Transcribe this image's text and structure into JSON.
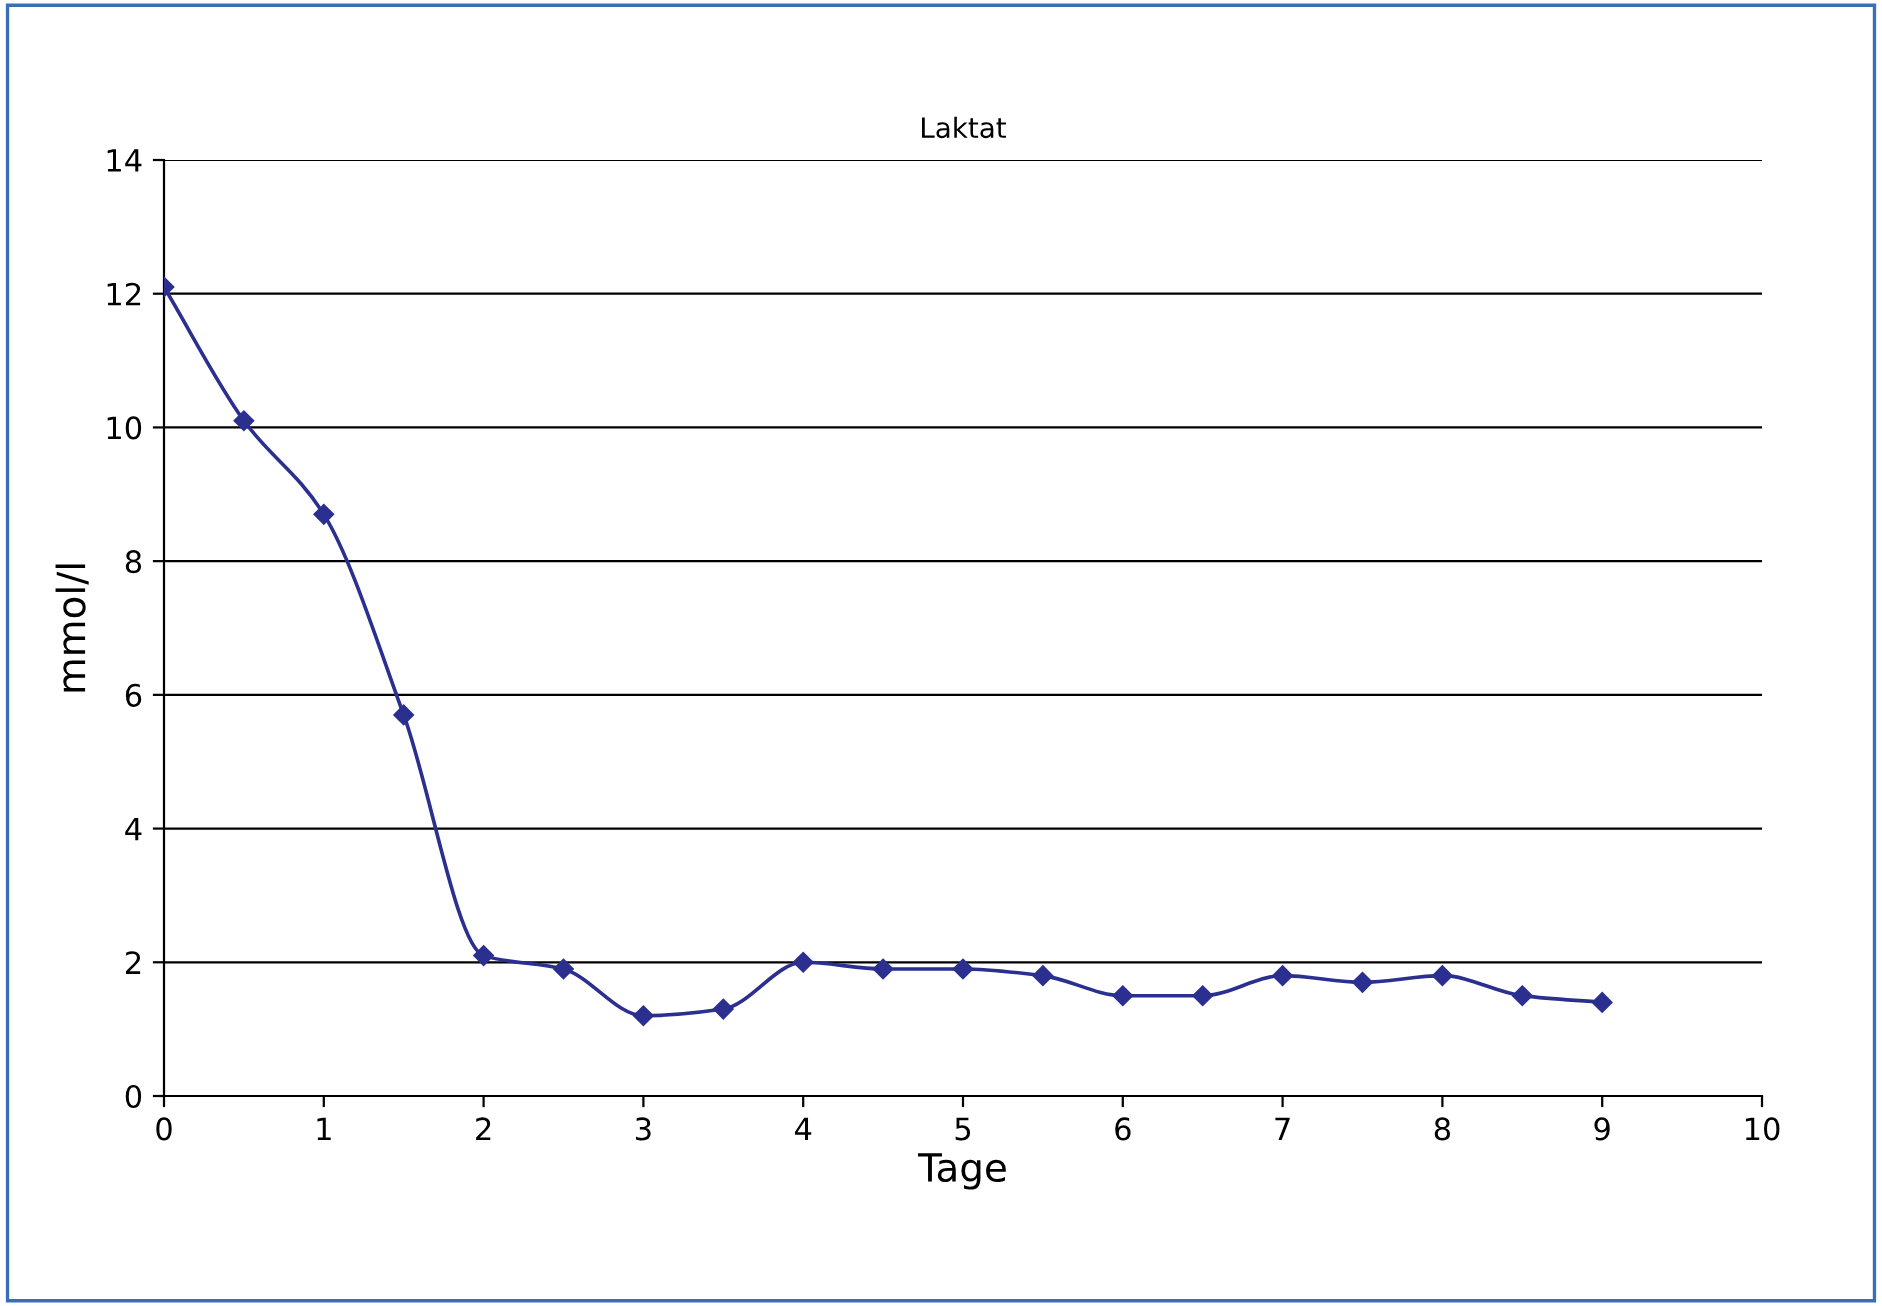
{
  "chart_data": {
    "type": "line",
    "title": "Laktat",
    "xlabel": "Tage",
    "ylabel": "mmol/l",
    "x": [
      0,
      0.5,
      1,
      1.5,
      2,
      2.5,
      3,
      3.5,
      4,
      4.5,
      5,
      5.5,
      6,
      6.5,
      7,
      7.5,
      8,
      8.5,
      9
    ],
    "series": [
      {
        "color": "#2b2f8f",
        "values": [
          12.1,
          10.1,
          8.7,
          5.7,
          2.1,
          1.9,
          1.2,
          1.3,
          2.0,
          1.9,
          1.9,
          1.8,
          1.5,
          1.5,
          1.8,
          1.7,
          1.8,
          1.5,
          1.4
        ]
      }
    ],
    "xlim": [
      0,
      10
    ],
    "xticks": [
      0,
      1,
      2,
      3,
      4,
      5,
      6,
      7,
      8,
      9,
      10
    ],
    "ylim": [
      0,
      14
    ],
    "yticks": [
      0,
      2,
      4,
      6,
      8,
      10,
      12,
      14
    ],
    "grid": "y",
    "legend": false,
    "marker": "diamond",
    "line_style": "solid"
  }
}
